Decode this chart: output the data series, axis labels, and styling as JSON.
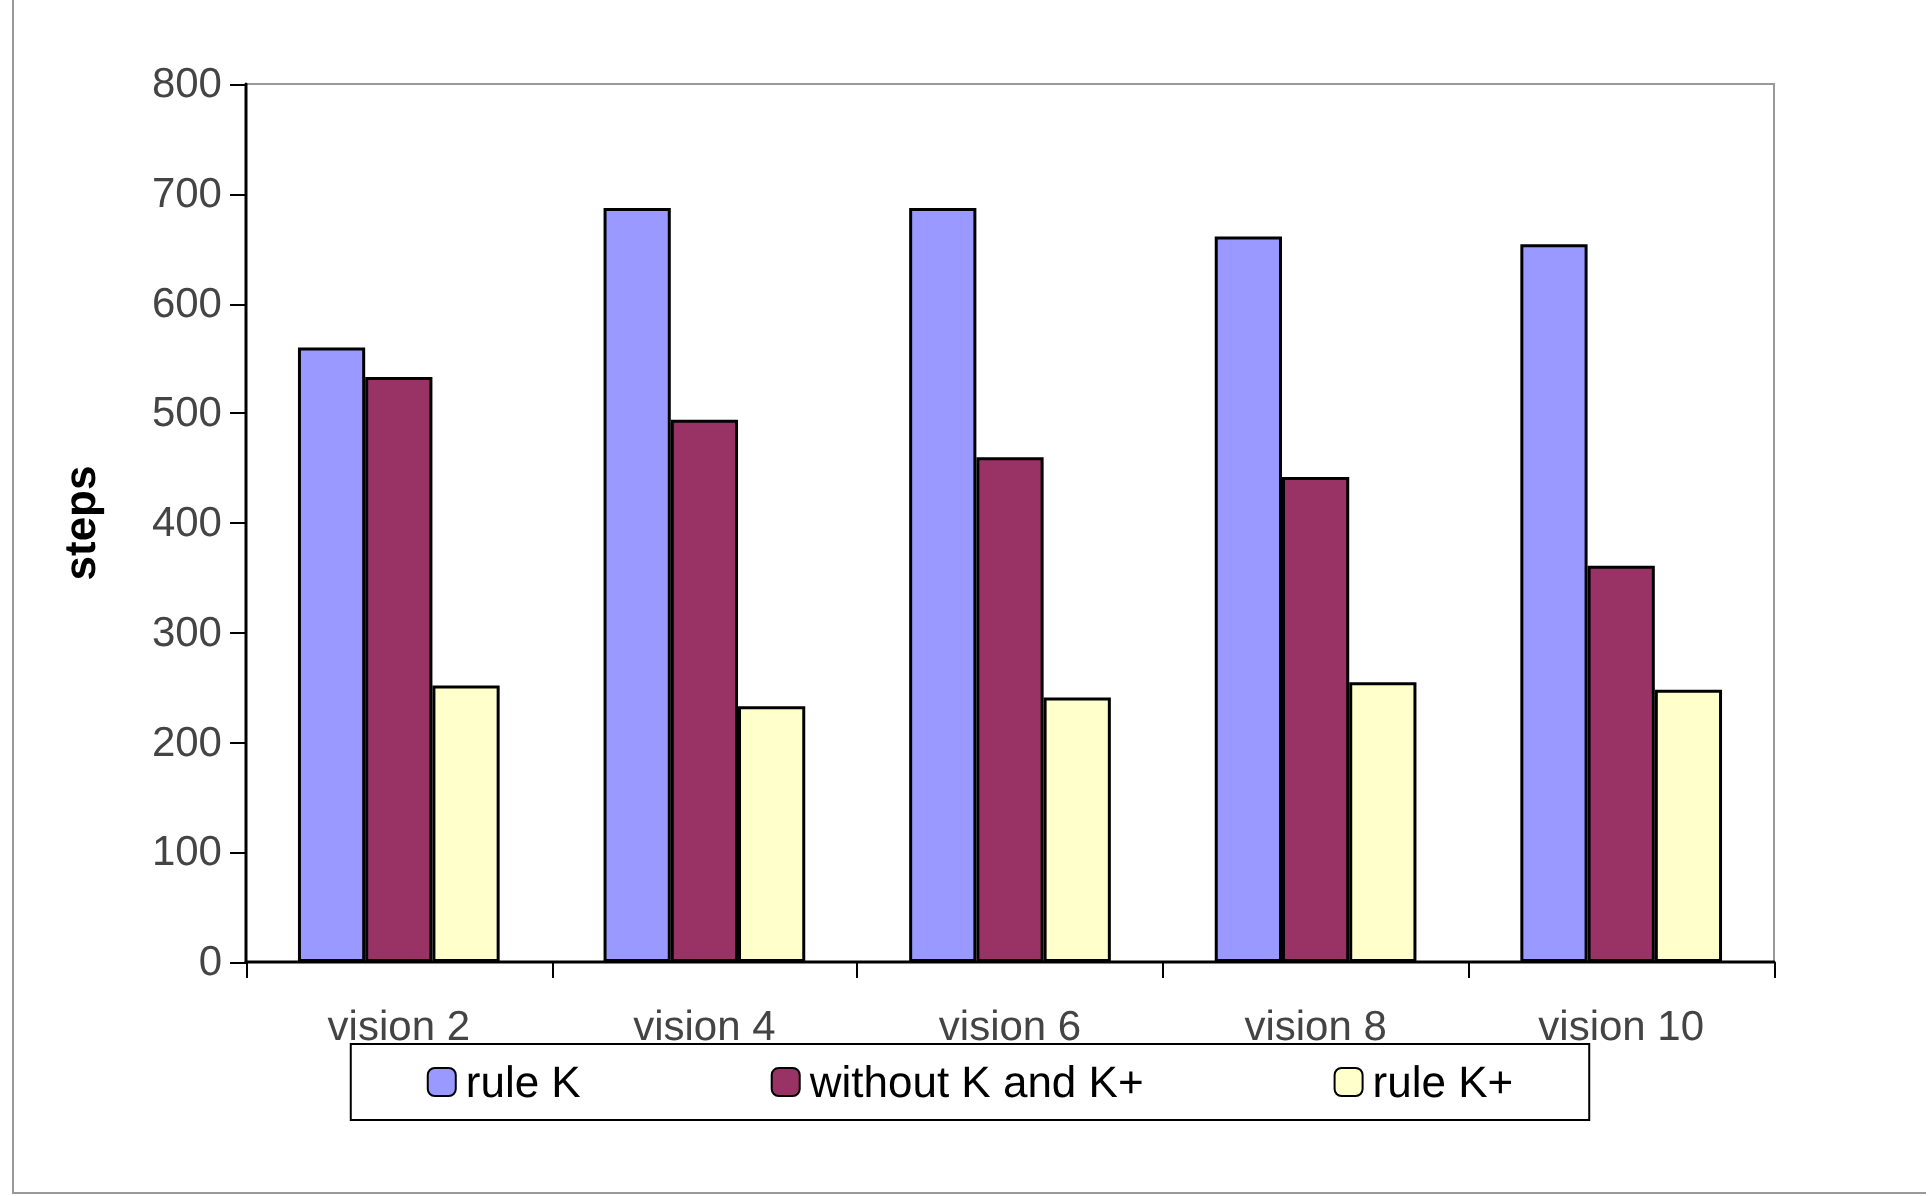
{
  "chart_data": {
    "type": "bar",
    "ylabel": "steps",
    "categories": [
      "vision 2",
      "vision 4",
      "vision 6",
      "vision 8",
      "vision 10"
    ],
    "series": [
      {
        "name": "rule K",
        "color": "#9999ff",
        "values": [
          560,
          687,
          687,
          661,
          654
        ]
      },
      {
        "name": "without K and K+",
        "color": "#993366",
        "values": [
          533,
          494,
          460,
          442,
          361
        ]
      },
      {
        "name": "rule K+",
        "color": "#ffffcc",
        "values": [
          252,
          233,
          241,
          255,
          248
        ]
      }
    ],
    "ylim": [
      0,
      800
    ],
    "yticks": [
      0,
      100,
      200,
      300,
      400,
      500,
      600,
      700,
      800
    ],
    "grid": false,
    "legend": "bottom"
  }
}
